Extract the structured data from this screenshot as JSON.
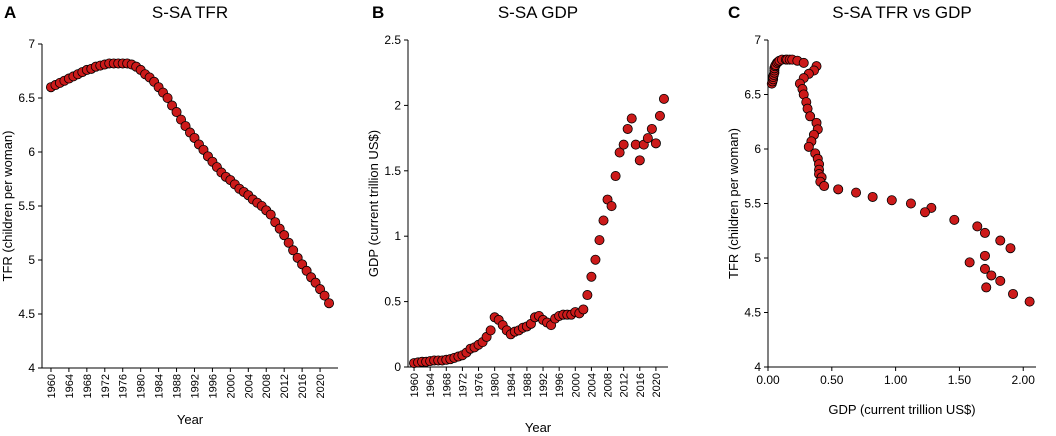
{
  "chart_data": [
    {
      "type": "scatter",
      "panel_label": "A",
      "title": "S-SA TFR",
      "xlabel": "Year",
      "ylabel": "TFR (children per woman)",
      "color": "#cc1a1a",
      "x": [
        1960,
        1961,
        1962,
        1963,
        1964,
        1965,
        1966,
        1967,
        1968,
        1969,
        1970,
        1971,
        1972,
        1973,
        1974,
        1975,
        1976,
        1977,
        1978,
        1979,
        1980,
        1981,
        1982,
        1983,
        1984,
        1985,
        1986,
        1987,
        1988,
        1989,
        1990,
        1991,
        1992,
        1993,
        1994,
        1995,
        1996,
        1997,
        1998,
        1999,
        2000,
        2001,
        2002,
        2003,
        2004,
        2005,
        2006,
        2007,
        2008,
        2009,
        2010,
        2011,
        2012,
        2013,
        2014,
        2015,
        2016,
        2017,
        2018,
        2019,
        2020,
        2021,
        2022
      ],
      "values": [
        6.6,
        6.62,
        6.64,
        6.66,
        6.68,
        6.7,
        6.72,
        6.74,
        6.76,
        6.77,
        6.79,
        6.8,
        6.81,
        6.82,
        6.82,
        6.82,
        6.82,
        6.82,
        6.81,
        6.79,
        6.76,
        6.72,
        6.69,
        6.65,
        6.6,
        6.55,
        6.5,
        6.43,
        6.37,
        6.3,
        6.24,
        6.18,
        6.13,
        6.07,
        6.02,
        5.96,
        5.91,
        5.86,
        5.81,
        5.77,
        5.74,
        5.7,
        5.66,
        5.63,
        5.6,
        5.56,
        5.53,
        5.5,
        5.46,
        5.42,
        5.35,
        5.29,
        5.23,
        5.16,
        5.09,
        5.02,
        4.96,
        4.9,
        4.84,
        4.79,
        4.73,
        4.67,
        4.6
      ],
      "xlim": [
        1958,
        2024
      ],
      "xticks": [
        1960,
        1964,
        1968,
        1972,
        1976,
        1980,
        1984,
        1988,
        1992,
        1996,
        2000,
        2004,
        2008,
        2012,
        2016,
        2020
      ],
      "ylim": [
        4,
        7
      ],
      "yticks": [
        4,
        4.5,
        5,
        5.5,
        6,
        6.5,
        7
      ]
    },
    {
      "type": "scatter",
      "panel_label": "B",
      "title": "S-SA GDP",
      "xlabel": "Year",
      "ylabel": "GDP (current trillion US$)",
      "color": "#cc1a1a",
      "x": [
        1960,
        1961,
        1962,
        1963,
        1964,
        1965,
        1966,
        1967,
        1968,
        1969,
        1970,
        1971,
        1972,
        1973,
        1974,
        1975,
        1976,
        1977,
        1978,
        1979,
        1980,
        1981,
        1982,
        1983,
        1984,
        1985,
        1986,
        1987,
        1988,
        1989,
        1990,
        1991,
        1992,
        1993,
        1994,
        1995,
        1996,
        1997,
        1998,
        1999,
        2000,
        2001,
        2002,
        2003,
        2004,
        2005,
        2006,
        2007,
        2008,
        2009,
        2010,
        2011,
        2012,
        2013,
        2014,
        2015,
        2016,
        2017,
        2018,
        2019,
        2020,
        2021,
        2022
      ],
      "values": [
        0.03,
        0.035,
        0.04,
        0.04,
        0.045,
        0.05,
        0.05,
        0.05,
        0.055,
        0.06,
        0.07,
        0.08,
        0.09,
        0.11,
        0.14,
        0.15,
        0.17,
        0.19,
        0.23,
        0.28,
        0.38,
        0.36,
        0.32,
        0.28,
        0.25,
        0.27,
        0.28,
        0.3,
        0.31,
        0.33,
        0.38,
        0.39,
        0.36,
        0.34,
        0.32,
        0.37,
        0.39,
        0.4,
        0.4,
        0.4,
        0.42,
        0.41,
        0.44,
        0.55,
        0.69,
        0.82,
        0.97,
        1.12,
        1.28,
        1.23,
        1.46,
        1.64,
        1.7,
        1.82,
        1.9,
        1.7,
        1.58,
        1.7,
        1.75,
        1.82,
        1.71,
        1.92,
        2.05
      ],
      "xlim": [
        1958.5,
        2023
      ],
      "xticks": [
        1960,
        1964,
        1968,
        1972,
        1976,
        1980,
        1984,
        1988,
        1992,
        1996,
        2000,
        2004,
        2008,
        2012,
        2016,
        2020
      ],
      "ylim": [
        0,
        2.5
      ],
      "yticks": [
        0,
        0.5,
        1,
        1.5,
        2,
        2.5
      ]
    },
    {
      "type": "scatter",
      "panel_label": "C",
      "title": "S-SA TFR vs GDP",
      "xlabel": "GDP (current trillion US$)",
      "ylabel": "TFR (children per woman)",
      "color": "#cc1a1a",
      "x": [
        0.03,
        0.035,
        0.04,
        0.04,
        0.045,
        0.05,
        0.05,
        0.05,
        0.055,
        0.06,
        0.07,
        0.08,
        0.09,
        0.11,
        0.14,
        0.15,
        0.17,
        0.19,
        0.23,
        0.28,
        0.38,
        0.36,
        0.32,
        0.28,
        0.25,
        0.27,
        0.28,
        0.3,
        0.31,
        0.33,
        0.38,
        0.39,
        0.36,
        0.34,
        0.32,
        0.37,
        0.39,
        0.4,
        0.4,
        0.4,
        0.42,
        0.41,
        0.44,
        0.55,
        0.69,
        0.82,
        0.97,
        1.12,
        1.28,
        1.23,
        1.46,
        1.64,
        1.7,
        1.82,
        1.9,
        1.7,
        1.58,
        1.7,
        1.75,
        1.82,
        1.71,
        1.92,
        2.05
      ],
      "values": [
        6.6,
        6.62,
        6.64,
        6.66,
        6.68,
        6.7,
        6.72,
        6.74,
        6.76,
        6.77,
        6.79,
        6.8,
        6.81,
        6.82,
        6.82,
        6.82,
        6.82,
        6.82,
        6.81,
        6.79,
        6.76,
        6.72,
        6.69,
        6.65,
        6.6,
        6.55,
        6.5,
        6.43,
        6.37,
        6.3,
        6.24,
        6.18,
        6.13,
        6.07,
        6.02,
        5.96,
        5.91,
        5.86,
        5.81,
        5.77,
        5.74,
        5.7,
        5.66,
        5.63,
        5.6,
        5.56,
        5.53,
        5.5,
        5.46,
        5.42,
        5.35,
        5.29,
        5.23,
        5.16,
        5.09,
        5.02,
        4.96,
        4.9,
        4.84,
        4.79,
        4.73,
        4.67,
        4.6
      ],
      "xlim": [
        0,
        2.1
      ],
      "xticks": [
        {
          "value": 0,
          "label": "0.00"
        },
        {
          "value": 0.5,
          "label": "0.50"
        },
        {
          "value": 1,
          "label": "1.00"
        },
        {
          "value": 1.5,
          "label": "1.50"
        },
        {
          "value": 2,
          "label": "2.00"
        }
      ],
      "ylim": [
        4,
        7
      ],
      "yticks": [
        4,
        4.5,
        5,
        5.5,
        6,
        6.5,
        7
      ]
    }
  ]
}
